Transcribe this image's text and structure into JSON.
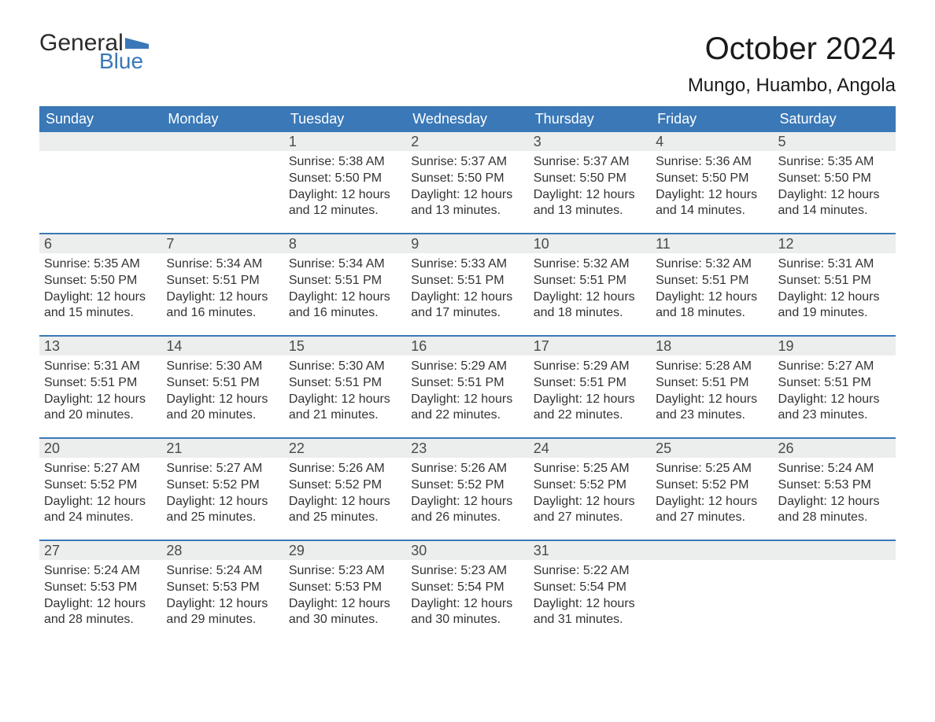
{
  "logo": {
    "general": "General",
    "blue": "Blue"
  },
  "title": "October 2024",
  "location": "Mungo, Huambo, Angola",
  "colors": {
    "header_bg": "#3a78b7",
    "header_text": "#ffffff",
    "daynum_bg": "#eceded",
    "week_border": "#3a78b7",
    "body_text": "#333333",
    "background": "#ffffff"
  },
  "days_of_week": [
    "Sunday",
    "Monday",
    "Tuesday",
    "Wednesday",
    "Thursday",
    "Friday",
    "Saturday"
  ],
  "weeks": [
    [
      {
        "n": "",
        "sunrise": "",
        "sunset": "",
        "daylight1": "",
        "daylight2": ""
      },
      {
        "n": "",
        "sunrise": "",
        "sunset": "",
        "daylight1": "",
        "daylight2": ""
      },
      {
        "n": "1",
        "sunrise": "Sunrise: 5:38 AM",
        "sunset": "Sunset: 5:50 PM",
        "daylight1": "Daylight: 12 hours",
        "daylight2": "and 12 minutes."
      },
      {
        "n": "2",
        "sunrise": "Sunrise: 5:37 AM",
        "sunset": "Sunset: 5:50 PM",
        "daylight1": "Daylight: 12 hours",
        "daylight2": "and 13 minutes."
      },
      {
        "n": "3",
        "sunrise": "Sunrise: 5:37 AM",
        "sunset": "Sunset: 5:50 PM",
        "daylight1": "Daylight: 12 hours",
        "daylight2": "and 13 minutes."
      },
      {
        "n": "4",
        "sunrise": "Sunrise: 5:36 AM",
        "sunset": "Sunset: 5:50 PM",
        "daylight1": "Daylight: 12 hours",
        "daylight2": "and 14 minutes."
      },
      {
        "n": "5",
        "sunrise": "Sunrise: 5:35 AM",
        "sunset": "Sunset: 5:50 PM",
        "daylight1": "Daylight: 12 hours",
        "daylight2": "and 14 minutes."
      }
    ],
    [
      {
        "n": "6",
        "sunrise": "Sunrise: 5:35 AM",
        "sunset": "Sunset: 5:50 PM",
        "daylight1": "Daylight: 12 hours",
        "daylight2": "and 15 minutes."
      },
      {
        "n": "7",
        "sunrise": "Sunrise: 5:34 AM",
        "sunset": "Sunset: 5:51 PM",
        "daylight1": "Daylight: 12 hours",
        "daylight2": "and 16 minutes."
      },
      {
        "n": "8",
        "sunrise": "Sunrise: 5:34 AM",
        "sunset": "Sunset: 5:51 PM",
        "daylight1": "Daylight: 12 hours",
        "daylight2": "and 16 minutes."
      },
      {
        "n": "9",
        "sunrise": "Sunrise: 5:33 AM",
        "sunset": "Sunset: 5:51 PM",
        "daylight1": "Daylight: 12 hours",
        "daylight2": "and 17 minutes."
      },
      {
        "n": "10",
        "sunrise": "Sunrise: 5:32 AM",
        "sunset": "Sunset: 5:51 PM",
        "daylight1": "Daylight: 12 hours",
        "daylight2": "and 18 minutes."
      },
      {
        "n": "11",
        "sunrise": "Sunrise: 5:32 AM",
        "sunset": "Sunset: 5:51 PM",
        "daylight1": "Daylight: 12 hours",
        "daylight2": "and 18 minutes."
      },
      {
        "n": "12",
        "sunrise": "Sunrise: 5:31 AM",
        "sunset": "Sunset: 5:51 PM",
        "daylight1": "Daylight: 12 hours",
        "daylight2": "and 19 minutes."
      }
    ],
    [
      {
        "n": "13",
        "sunrise": "Sunrise: 5:31 AM",
        "sunset": "Sunset: 5:51 PM",
        "daylight1": "Daylight: 12 hours",
        "daylight2": "and 20 minutes."
      },
      {
        "n": "14",
        "sunrise": "Sunrise: 5:30 AM",
        "sunset": "Sunset: 5:51 PM",
        "daylight1": "Daylight: 12 hours",
        "daylight2": "and 20 minutes."
      },
      {
        "n": "15",
        "sunrise": "Sunrise: 5:30 AM",
        "sunset": "Sunset: 5:51 PM",
        "daylight1": "Daylight: 12 hours",
        "daylight2": "and 21 minutes."
      },
      {
        "n": "16",
        "sunrise": "Sunrise: 5:29 AM",
        "sunset": "Sunset: 5:51 PM",
        "daylight1": "Daylight: 12 hours",
        "daylight2": "and 22 minutes."
      },
      {
        "n": "17",
        "sunrise": "Sunrise: 5:29 AM",
        "sunset": "Sunset: 5:51 PM",
        "daylight1": "Daylight: 12 hours",
        "daylight2": "and 22 minutes."
      },
      {
        "n": "18",
        "sunrise": "Sunrise: 5:28 AM",
        "sunset": "Sunset: 5:51 PM",
        "daylight1": "Daylight: 12 hours",
        "daylight2": "and 23 minutes."
      },
      {
        "n": "19",
        "sunrise": "Sunrise: 5:27 AM",
        "sunset": "Sunset: 5:51 PM",
        "daylight1": "Daylight: 12 hours",
        "daylight2": "and 23 minutes."
      }
    ],
    [
      {
        "n": "20",
        "sunrise": "Sunrise: 5:27 AM",
        "sunset": "Sunset: 5:52 PM",
        "daylight1": "Daylight: 12 hours",
        "daylight2": "and 24 minutes."
      },
      {
        "n": "21",
        "sunrise": "Sunrise: 5:27 AM",
        "sunset": "Sunset: 5:52 PM",
        "daylight1": "Daylight: 12 hours",
        "daylight2": "and 25 minutes."
      },
      {
        "n": "22",
        "sunrise": "Sunrise: 5:26 AM",
        "sunset": "Sunset: 5:52 PM",
        "daylight1": "Daylight: 12 hours",
        "daylight2": "and 25 minutes."
      },
      {
        "n": "23",
        "sunrise": "Sunrise: 5:26 AM",
        "sunset": "Sunset: 5:52 PM",
        "daylight1": "Daylight: 12 hours",
        "daylight2": "and 26 minutes."
      },
      {
        "n": "24",
        "sunrise": "Sunrise: 5:25 AM",
        "sunset": "Sunset: 5:52 PM",
        "daylight1": "Daylight: 12 hours",
        "daylight2": "and 27 minutes."
      },
      {
        "n": "25",
        "sunrise": "Sunrise: 5:25 AM",
        "sunset": "Sunset: 5:52 PM",
        "daylight1": "Daylight: 12 hours",
        "daylight2": "and 27 minutes."
      },
      {
        "n": "26",
        "sunrise": "Sunrise: 5:24 AM",
        "sunset": "Sunset: 5:53 PM",
        "daylight1": "Daylight: 12 hours",
        "daylight2": "and 28 minutes."
      }
    ],
    [
      {
        "n": "27",
        "sunrise": "Sunrise: 5:24 AM",
        "sunset": "Sunset: 5:53 PM",
        "daylight1": "Daylight: 12 hours",
        "daylight2": "and 28 minutes."
      },
      {
        "n": "28",
        "sunrise": "Sunrise: 5:24 AM",
        "sunset": "Sunset: 5:53 PM",
        "daylight1": "Daylight: 12 hours",
        "daylight2": "and 29 minutes."
      },
      {
        "n": "29",
        "sunrise": "Sunrise: 5:23 AM",
        "sunset": "Sunset: 5:53 PM",
        "daylight1": "Daylight: 12 hours",
        "daylight2": "and 30 minutes."
      },
      {
        "n": "30",
        "sunrise": "Sunrise: 5:23 AM",
        "sunset": "Sunset: 5:54 PM",
        "daylight1": "Daylight: 12 hours",
        "daylight2": "and 30 minutes."
      },
      {
        "n": "31",
        "sunrise": "Sunrise: 5:22 AM",
        "sunset": "Sunset: 5:54 PM",
        "daylight1": "Daylight: 12 hours",
        "daylight2": "and 31 minutes."
      },
      {
        "n": "",
        "sunrise": "",
        "sunset": "",
        "daylight1": "",
        "daylight2": ""
      },
      {
        "n": "",
        "sunrise": "",
        "sunset": "",
        "daylight1": "",
        "daylight2": ""
      }
    ]
  ]
}
